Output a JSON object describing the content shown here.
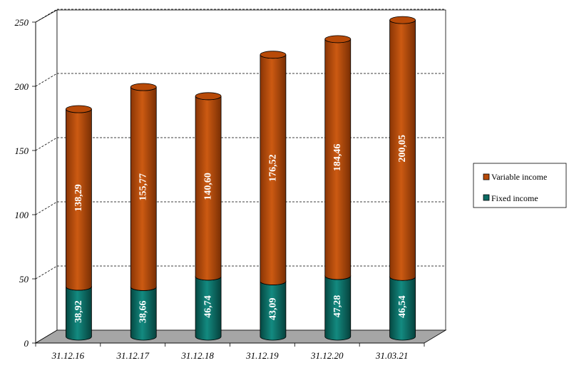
{
  "chart_data": {
    "type": "bar",
    "stacked": true,
    "three_d": true,
    "categories": [
      "31.12.16",
      "31.12.17",
      "31.12.18",
      "31.12.19",
      "31.12.20",
      "31.03.21"
    ],
    "series": [
      {
        "name": "Fixed income",
        "color": "#0b6b63",
        "values": [
          38.92,
          38.66,
          46.74,
          43.09,
          47.28,
          46.54
        ],
        "labels": [
          "38,92",
          "38,66",
          "46,74",
          "43,09",
          "47,28",
          "46,54"
        ]
      },
      {
        "name": "Variable income",
        "color": "#b84a08",
        "values": [
          138.29,
          155.77,
          140.6,
          176.52,
          184.46,
          200.05
        ],
        "labels": [
          "138,29",
          "155,77",
          "140,60",
          "176,52",
          "184,46",
          "200,05"
        ]
      }
    ],
    "y_ticks": [
      "0",
      "50",
      "100",
      "150",
      "200",
      "250"
    ],
    "ylim": [
      0,
      250
    ],
    "grid": true,
    "legend": "right",
    "legend_entries": [
      "Variable income",
      "Fixed income"
    ]
  }
}
